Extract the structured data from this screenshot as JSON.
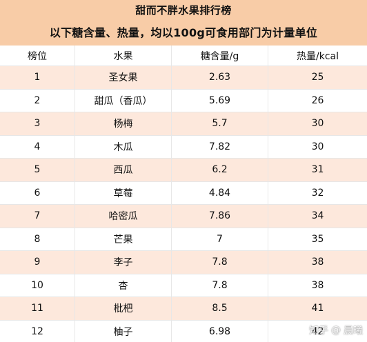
{
  "title": {
    "line1": "甜而不胖水果排行榜",
    "line2": "以下糖含量、热量，均以100g可食用部门为计量单位"
  },
  "table": {
    "headers": [
      "榜位",
      "水果",
      "糖含量/g",
      "热量/kcal"
    ],
    "rows": [
      [
        "1",
        "圣女果",
        "2.63",
        "25"
      ],
      [
        "2",
        "甜瓜（香瓜）",
        "5.69",
        "26"
      ],
      [
        "3",
        "杨梅",
        "5.7",
        "30"
      ],
      [
        "4",
        "木瓜",
        "7.82",
        "30"
      ],
      [
        "5",
        "西瓜",
        "6.2",
        "31"
      ],
      [
        "6",
        "草莓",
        "4.84",
        "32"
      ],
      [
        "7",
        "哈密瓜",
        "7.86",
        "34"
      ],
      [
        "8",
        "芒果",
        "7",
        "35"
      ],
      [
        "9",
        "李子",
        "7.8",
        "38"
      ],
      [
        "10",
        "杏",
        "7.8",
        "38"
      ],
      [
        "11",
        "枇杷",
        "8.5",
        "41"
      ],
      [
        "12",
        "柚子",
        "6.98",
        "42"
      ]
    ]
  },
  "watermark": {
    "site": "知乎",
    "separator": "@",
    "author": "晨曦"
  },
  "colors": {
    "title_bg": "#f8cca7",
    "alt_row_bg": "#fde8dc",
    "plain_row_bg": "#ffffff",
    "text": "#111111"
  }
}
